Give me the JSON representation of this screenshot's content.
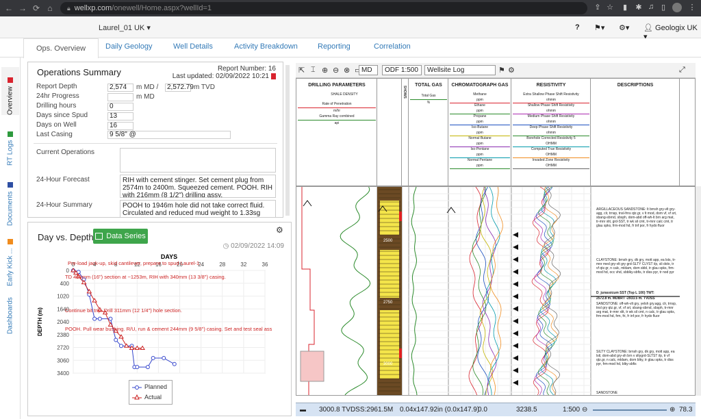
{
  "browser": {
    "url_host": "wellxp.com",
    "url_path": "/onewell/Home.aspx?wellId=1"
  },
  "app": {
    "well_selector": "Laurel_01 UK ▾",
    "user": "Geologix UK ▾"
  },
  "tabs": [
    "Ops. Overview",
    "Daily Geology",
    "Well Details",
    "Activity Breakdown",
    "Reporting",
    "Correlation"
  ],
  "side_tabs": [
    {
      "label": "Overview",
      "color": "#d9232e"
    },
    {
      "label": "RT Logs",
      "color": "#2e9a3e"
    },
    {
      "label": "Documents",
      "color": "#2e4fa3"
    },
    {
      "label": "Early Kick ...",
      "color": "#f08c1e"
    },
    {
      "label": "Dashboards",
      "color": ""
    }
  ],
  "ops": {
    "title": "Operations Summary",
    "report_number": "Report Number: 16",
    "last_updated": "Last updated: 02/09/2022 10:21",
    "fields": {
      "report_depth_label": "Report Depth",
      "report_depth_md": "2,574",
      "report_depth_md_unit": "m MD /",
      "report_depth_tvd": "2,572.79",
      "report_depth_tvd_unit": "m TVD",
      "progress_label": "24hr Progress",
      "progress_value": "",
      "progress_unit": "m MD",
      "drilling_hours_label": "Drilling hours",
      "drilling_hours_value": "0",
      "days_spud_label": "Days since Spud",
      "days_spud_value": "13",
      "days_well_label": "Days on Well",
      "days_well_value": "16",
      "last_casing_label": "Last Casing",
      "last_casing_value": "9 5/8\" @"
    },
    "current_ops_label": "Current Operations",
    "current_ops_value": "",
    "forecast_label": "24-Hour Forecast",
    "forecast_value": "RIH with cement stinger. Set cement plug from 2574m to 2400m. Squeezed cement. POOH. RIH with 216mm (8 1/2\") drilling assy.",
    "summary_label": "24-Hour Summary",
    "summary_value": "POOH to 1946m hole did not take correct fluid. Circulated and reduced mud weight to 1.33sg (11.1 ppg). Spotted LCM pill. POOH."
  },
  "dvd": {
    "title": "Day vs. Depth",
    "button": "Data Series",
    "date": "02/09/2022 14:09",
    "legend_planned": "Planned",
    "legend_actual": "Actual"
  },
  "chart_data": {
    "type": "line",
    "title": "DAYS",
    "xlabel": "DAYS",
    "ylabel": "DEPTH (m)",
    "x_ticks": [
      "0",
      "4",
      "8",
      "12",
      "16",
      "20",
      "24",
      "28",
      "32",
      "36"
    ],
    "y_ticks": [
      "0",
      "400",
      "1020",
      "1640",
      "2040",
      "2380",
      "2720",
      "3060",
      "3400"
    ],
    "xlim": [
      0,
      36
    ],
    "ylim": [
      0,
      3400
    ],
    "y_reversed": true,
    "series": [
      {
        "name": "Planned",
        "color": "#3344cc",
        "x": [
          0,
          1,
          2,
          3,
          4,
          5,
          7,
          8,
          9,
          11,
          11.5,
          12,
          14,
          15,
          17,
          19
        ],
        "y": [
          0,
          50,
          300,
          800,
          1600,
          1600,
          1600,
          2300,
          2500,
          2500,
          3200,
          3200,
          3200,
          2900,
          2900,
          3100
        ]
      },
      {
        "name": "Actual",
        "color": "#cc2222",
        "x": [
          0,
          0.5,
          1,
          2,
          3,
          4,
          5,
          6,
          7,
          8,
          9,
          10,
          11,
          12,
          13
        ],
        "y": [
          0,
          80,
          200,
          400,
          700,
          1000,
          1300,
          1400,
          1800,
          2000,
          2200,
          2500,
          2574,
          2574,
          2574
        ]
      }
    ],
    "annotations": [
      "Pre-load jack-up, skid cantilever, prepare to spud Laurel-1.",
      "TD 406mm (16\") section at ~1253m, RIH with 340mm (13 3/8\") casing.",
      "Continue bit trip. Drill 311mm (12 1/4\") hole section.",
      "POOH. Pull wear bushing. R/U, run & cement 244mm (9 5/8\") casing. Set and test seal ass"
    ]
  },
  "log": {
    "md_select": "MD",
    "scale_select": "ODF 1:500",
    "template_select": "Wellsite Log",
    "headers": [
      "DRILLING PARAMETERS",
      "SHOWS",
      "TOTAL GAS",
      "CHROMATOGRAPH GAS",
      "RESISTIVITY",
      "DESCRIPTIONS"
    ],
    "drilling_sub": [
      "SHALE DENSITY",
      "Rate of Penetration",
      "m/hr",
      "Gamma Ray combined",
      "api"
    ],
    "total_gas_sub": [
      "Total Gas",
      "%"
    ],
    "chrom_sub": [
      "Methane",
      "ppm",
      "Ethane",
      "ppm",
      "Propane",
      "ppm",
      "Iso-Butane",
      "ppm",
      "Normal Butane",
      "ppm",
      "Iso-Pentane",
      "ppm",
      "Normal Pentane",
      "ppm"
    ],
    "res_sub": [
      "Extra Shallow Phase Shift Resistivity",
      "ohmm",
      "Shallow Phase Shift Resistivity",
      "ohmm",
      "Medium Phase Shift Resistivity",
      "ohmm",
      "Deep Phase Shift Resistivity",
      "ohmm",
      "Borehole Corrected Resistivity 5",
      "OHMM",
      "Computed True Resistivity",
      "OHMM",
      "Invaded Zone Resistivity",
      "OHMM"
    ],
    "descriptions": [
      "ARGILLACEOUS SANDSTONE: lt brnsh gry-vlt gry-agg, clr, trnsp, tnsl-frns qtz.gr, v lt mod, dom vf, vf srt, sbang-sbrnd, sbsph, dom-abd off-wh-lt brn arg mat, tr-mnr xlit, grd-SST, tr wk sil cmt, tr-mnr calc cmt, tr glau spks, frm-mod hd, fr tnf por, fr hydo fluor",
      "CLAYSTONE: brnsh gry, dk gry, mott app, ea lsts, tr-mnr med gry-vlt gry grd-SLTY CLYST i/p, sli dolo, tr vf qtz.gr, n calc, mldam, dom sbbl, tr glau spks, frm-mod hd, occ vhd, sbblky-sbfis, tr diss pyr, tr nod pyr",
      "D_jurassicum SST (Top L 100)   TWT:",
      "2572.8 m. MDBRT   -2933.5 m. TVDSS",
      "SANDSTONE: off-wh-vlt gry, yelsh gry.agg, clr, trnsp, tnsl gry qtz.gr, vf, vf srt, sbang-sbrnd, sbsph, tr-mnr arg mat, tr-mnr xlit, tr wk sil cmt, n calc, tr glau spks, frm-mod hd, frm, fri, fr inf por, fr hydo fluor",
      "SILTY CLAYSTONE: brnsh gry, dk gry, mott app, ea lstl, dom-abd gry-sh brn v sltygrd-SLTST i/p, tr vf qtz.gr, n calc, mldam, dom blky, tr glau spks, tr diss pyr, frm-mod hd, blky-sbfis",
      "SANDSTONE"
    ],
    "status": [
      "3000.8 TVDSS:2961.5M",
      "0.04x147.92in (0.0x147.9)",
      "0.0",
      "3238.5",
      "1:500",
      "78.3"
    ],
    "depth_labels": [
      "2500",
      "2750",
      "3000"
    ]
  }
}
